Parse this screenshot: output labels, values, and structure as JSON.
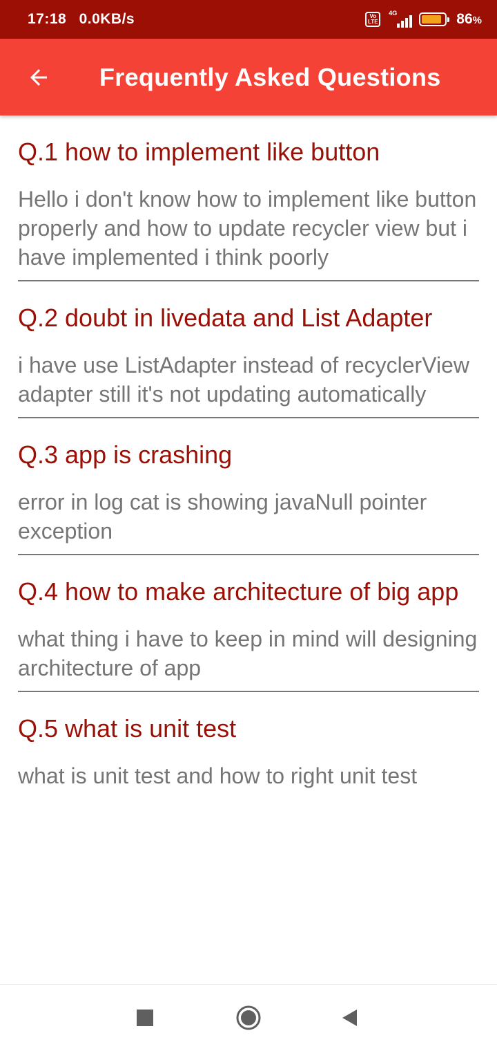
{
  "status_bar": {
    "time": "17:18",
    "network_speed": "0.0KB/s",
    "volte_top": "Vo",
    "volte_bottom": "LTE",
    "network_type": "4G",
    "battery_percent": "86",
    "battery_unit": "%",
    "battery_level": 0.86,
    "battery_color": "#f4a11b"
  },
  "app_bar": {
    "title": "Frequently Asked Questions",
    "back_icon": "arrow-left-icon",
    "color": "#f44336"
  },
  "faqs": [
    {
      "question": "Q.1 how to implement like button",
      "answer": "Hello i don't know how to implement like button properly and how to update recycler view but i have implemented i think poorly"
    },
    {
      "question": "Q.2 doubt in livedata and List Adapter",
      "answer": "i have use ListAdapter instead of recyclerView adapter still it's not updating automatically"
    },
    {
      "question": "Q.3 app is crashing",
      "answer": "error in log cat is showing javaNull pointer exception"
    },
    {
      "question": "Q.4 how to make architecture of big app",
      "answer": "what thing i have to keep in mind will designing architecture of app"
    },
    {
      "question": "Q.5 what is unit test",
      "answer": "what is unit test and how to right unit test"
    }
  ],
  "nav_bar": {
    "recents_icon": "square-icon",
    "home_icon": "circle-icon",
    "back_icon": "triangle-back-icon"
  },
  "colors": {
    "status_bar": "#9b0f05",
    "question_text": "#9b0f05",
    "answer_text": "#757575"
  }
}
